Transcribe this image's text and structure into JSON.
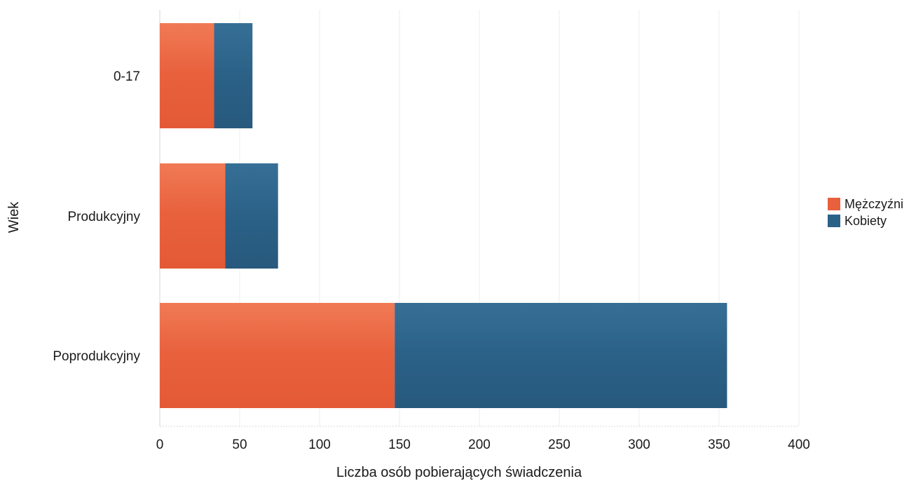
{
  "chart_data": {
    "type": "bar",
    "orientation": "horizontal",
    "stacked": true,
    "categories": [
      "0-17",
      "Produkcyjny",
      "Poprodukcyjny"
    ],
    "series": [
      {
        "name": "Mężczyźni",
        "color": "#e8603c",
        "values": [
          34,
          41,
          147
        ]
      },
      {
        "name": "Kobiety",
        "color": "#2b6187",
        "values": [
          24,
          33,
          208
        ]
      }
    ],
    "title": "",
    "xlabel": "Liczba osób pobierających świadczenia",
    "ylabel": "Wiek",
    "xlim": [
      0,
      400
    ],
    "xticks": [
      0,
      50,
      100,
      150,
      200,
      250,
      300,
      350,
      400
    ],
    "grid": true,
    "legend_position": "right"
  }
}
